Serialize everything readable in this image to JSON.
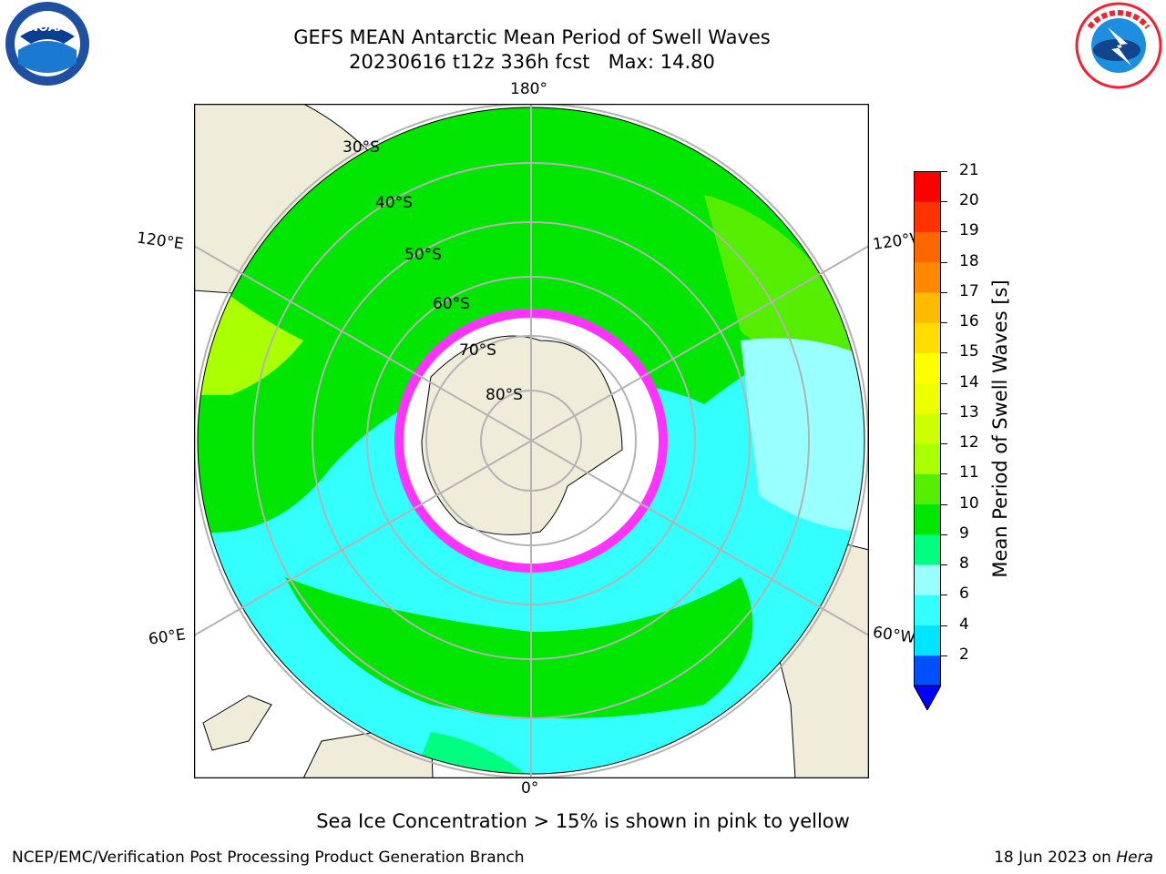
{
  "title": {
    "line1": "GEFS MEAN Antarctic Mean Period of Swell Waves",
    "line2": "20230616 t12z 336h fcst   Max: 14.80"
  },
  "logos": {
    "left": "NOAA",
    "right": "NATIONAL WEATHER SERVICE"
  },
  "map": {
    "projection": "south-polar-stereographic",
    "longitude_labels": [
      "180°",
      "120°E",
      "120°W",
      "60°E",
      "60°W",
      "0°"
    ],
    "latitude_labels": [
      "30°S",
      "40°S",
      "50°S",
      "60°S",
      "70°S",
      "80°S"
    ],
    "colors": {
      "land": "#efedda",
      "ice_free": "#ffffff",
      "grid": "#b3b3b3"
    }
  },
  "colorbar": {
    "label": "Mean Period of Swell Waves [s]",
    "ticks": [
      "21",
      "20",
      "19",
      "18",
      "17",
      "16",
      "15",
      "14",
      "13",
      "12",
      "11",
      "10",
      "9",
      "8",
      "6",
      "4",
      "2"
    ],
    "levels": [
      2,
      4,
      6,
      8,
      9,
      10,
      11,
      12,
      13,
      14,
      15,
      16,
      17,
      18,
      19,
      20,
      21
    ],
    "colors": [
      "#0050ff",
      "#00e5ff",
      "#33ffff",
      "#99ffff",
      "#00ff80",
      "#00e600",
      "#55ee00",
      "#aaff00",
      "#ccff00",
      "#eeff00",
      "#ffff00",
      "#ffdd00",
      "#ffbb00",
      "#ff8800",
      "#ff6600",
      "#ff3300",
      "#ff0000"
    ],
    "under_color": "#0000ff"
  },
  "note": "Sea Ice Concentration > 15% is shown in pink to yellow",
  "footer": {
    "left": "NCEP/EMC/Verification Post Processing Product Generation Branch",
    "right_date": "18 Jun 2023 on ",
    "right_host": "Hera"
  }
}
